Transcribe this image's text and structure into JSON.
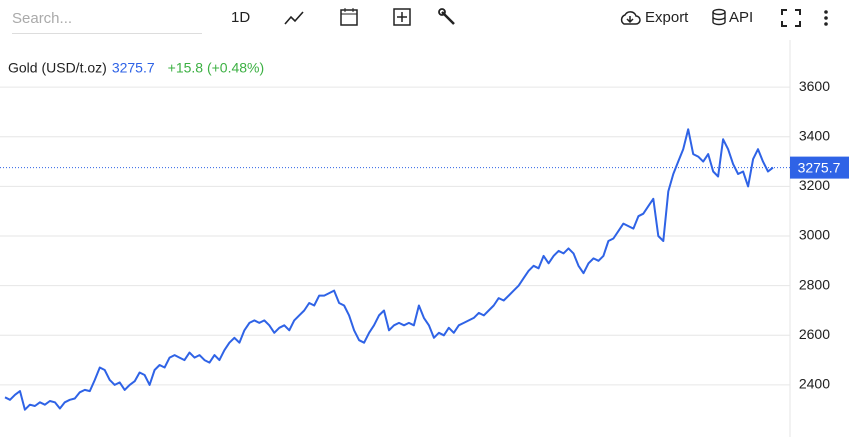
{
  "toolbar": {
    "search_placeholder": "Search...",
    "interval": "1D",
    "export": "Export",
    "api": "API"
  },
  "chart_data": {
    "type": "line",
    "series_name": "Gold (USD/t.oz)",
    "last_value": 3275.7,
    "change": "+15.8 (+0.48%)",
    "color": "#2f63e6",
    "change_color": "#3cb043",
    "grid": true,
    "ylim": [
      2190,
      3790
    ],
    "yticks": [
      2400,
      2600,
      2800,
      3000,
      3200,
      3400,
      3600
    ],
    "values": [
      2350,
      2340,
      2360,
      2375,
      2300,
      2320,
      2315,
      2330,
      2320,
      2335,
      2330,
      2305,
      2330,
      2340,
      2345,
      2370,
      2380,
      2375,
      2420,
      2470,
      2460,
      2420,
      2400,
      2410,
      2380,
      2400,
      2415,
      2450,
      2440,
      2400,
      2460,
      2480,
      2470,
      2510,
      2520,
      2510,
      2500,
      2530,
      2510,
      2520,
      2500,
      2490,
      2520,
      2500,
      2540,
      2570,
      2590,
      2570,
      2620,
      2650,
      2660,
      2650,
      2660,
      2640,
      2610,
      2630,
      2640,
      2620,
      2660,
      2680,
      2700,
      2730,
      2720,
      2760,
      2760,
      2770,
      2780,
      2730,
      2720,
      2680,
      2620,
      2580,
      2570,
      2610,
      2640,
      2680,
      2700,
      2620,
      2640,
      2650,
      2640,
      2650,
      2640,
      2720,
      2670,
      2640,
      2590,
      2610,
      2600,
      2630,
      2610,
      2640,
      2650,
      2660,
      2670,
      2690,
      2680,
      2700,
      2720,
      2750,
      2740,
      2760,
      2780,
      2800,
      2830,
      2860,
      2880,
      2870,
      2920,
      2890,
      2920,
      2940,
      2930,
      2950,
      2930,
      2880,
      2850,
      2890,
      2910,
      2900,
      2920,
      2980,
      2990,
      3020,
      3050,
      3040,
      3030,
      3080,
      3090,
      3120,
      3150,
      3000,
      2980,
      3180,
      3250,
      3300,
      3350,
      3430,
      3330,
      3320,
      3300,
      3330,
      3260,
      3240,
      3390,
      3350,
      3290,
      3250,
      3260,
      3200,
      3310,
      3350,
      3300,
      3260,
      3275.7
    ]
  }
}
